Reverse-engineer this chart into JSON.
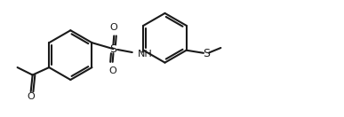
{
  "bg": "#ffffff",
  "lc": "#1a1a1a",
  "lw": 1.5,
  "fs": 8.0,
  "figw": 3.87,
  "figh": 1.32,
  "dpi": 100,
  "xlim": [
    0,
    10
  ],
  "ylim": [
    0,
    3.4
  ]
}
